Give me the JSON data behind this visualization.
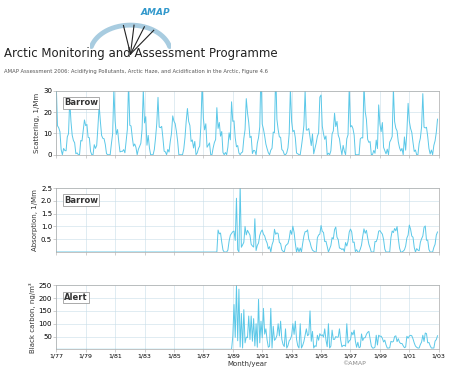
{
  "title": "Arctic Monitoring and Assessment Programme",
  "subtitle": "AMAP Assessment 2006: Acidifying Pollutants, Arctic Haze, and Acidification in the Arctic, Figure 4.6",
  "scatter_label": "Scattering, 1/Mm",
  "absorb_label": "Absorption, 1/Mm",
  "bc_label": "Black carbon, ng/m³",
  "barrow_label": "Barrow",
  "alert_label": "Alert",
  "xlabel": "Month/year",
  "copyright": "©AMAP",
  "scatter_ylim": [
    0,
    30
  ],
  "scatter_yticks": [
    0,
    10,
    20,
    30
  ],
  "absorb_ylim": [
    0,
    2.5
  ],
  "absorb_yticks": [
    0.5,
    1.0,
    1.5,
    2.0,
    2.5
  ],
  "bc_ylim": [
    0,
    250
  ],
  "bc_yticks": [
    50,
    100,
    150,
    200,
    250
  ],
  "xtick_labels": [
    "1/77",
    "1/79",
    "1/81",
    "1/83",
    "1/85",
    "1/87",
    "1/89",
    "1/91",
    "1/93",
    "1/95",
    "1/97",
    "1/99",
    "1/01",
    "1/03"
  ],
  "line_color": "#5bc8e8",
  "grid_color": "#c8dde8",
  "bg_color": "#ffffff",
  "logo_arc_color": "#a8cce0",
  "logo_line_color": "#222222",
  "logo_text_color": "#3399cc",
  "title_color": "#222222",
  "subtitle_color": "#555555",
  "label_color": "#333333"
}
